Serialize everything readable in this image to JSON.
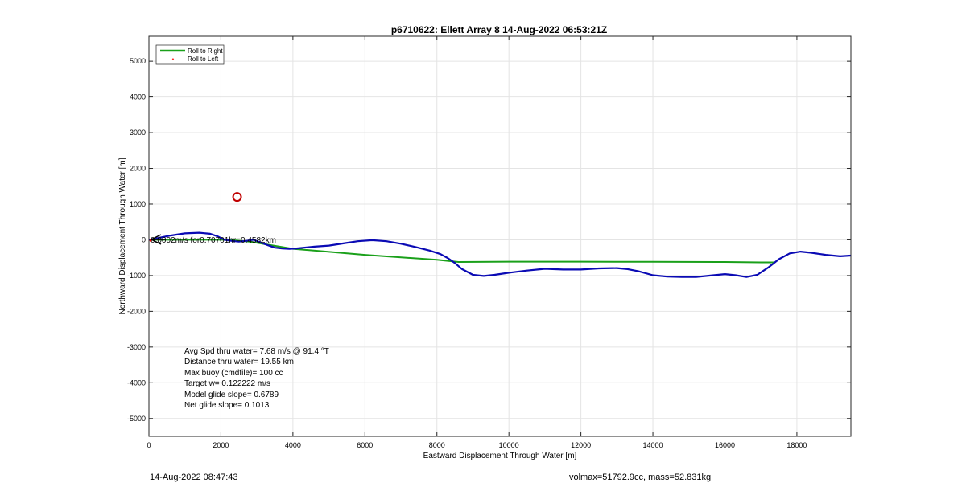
{
  "chart_data": {
    "type": "line",
    "title": "p6710622: Ellett Array 8 14-Aug-2022 06:53:21Z",
    "xlabel": "Eastward Displacement Through Water [m]",
    "ylabel": "Northward Displacement Through Water [m]",
    "xlim": [
      0,
      19500
    ],
    "ylim": [
      -5500,
      5700
    ],
    "xticks": [
      0,
      2000,
      4000,
      6000,
      8000,
      10000,
      12000,
      14000,
      16000,
      18000
    ],
    "yticks": [
      -5000,
      -4000,
      -3000,
      -2000,
      -1000,
      0,
      1000,
      2000,
      3000,
      4000,
      5000
    ],
    "grid": true,
    "legend_position": "top-left",
    "legend": [
      "Roll to Right",
      "Roll to Left"
    ],
    "series": [
      {
        "name": "Roll to Right",
        "color": "#1aa01a",
        "x": [
          0,
          2200,
          2800,
          3400,
          4000,
          6000,
          8000,
          8600,
          10000,
          12000,
          14000,
          16000,
          17000,
          17400
        ],
        "y": [
          0,
          0,
          -50,
          -150,
          -250,
          -420,
          -560,
          -620,
          -610,
          -610,
          -615,
          -620,
          -630,
          -630
        ]
      },
      {
        "name": "",
        "color": "#0a0ab4",
        "x": [
          0,
          300,
          600,
          1000,
          1400,
          1700,
          1900,
          2100,
          2300,
          2500,
          2700,
          2900,
          3100,
          3300,
          3500,
          3700,
          3900,
          4100,
          4300,
          4600,
          5000,
          5400,
          5800,
          6200,
          6600,
          7000,
          7400,
          7800,
          8100,
          8300,
          8500,
          8700,
          9000,
          9300,
          9600,
          10000,
          10500,
          11000,
          11500,
          12000,
          12500,
          13000,
          13300,
          13600,
          14000,
          14400,
          14800,
          15200,
          15600,
          16000,
          16300,
          16600,
          16900,
          17200,
          17500,
          17800,
          18100,
          18400,
          18800,
          19200,
          19500
        ],
        "y": [
          0,
          60,
          120,
          180,
          200,
          170,
          100,
          0,
          -30,
          -50,
          -30,
          0,
          -70,
          -150,
          -220,
          -240,
          -250,
          -240,
          -220,
          -190,
          -160,
          -100,
          -40,
          -10,
          -40,
          -110,
          -200,
          -300,
          -400,
          -510,
          -650,
          -820,
          -980,
          -1010,
          -980,
          -920,
          -860,
          -810,
          -830,
          -830,
          -800,
          -790,
          -820,
          -880,
          -990,
          -1030,
          -1040,
          -1040,
          -1000,
          -960,
          -990,
          -1040,
          -980,
          -780,
          -540,
          -380,
          -330,
          -360,
          -420,
          -460,
          -440
        ]
      }
    ],
    "markers": [
      {
        "label": "Roll to Left",
        "x": 50,
        "y": -20,
        "color": "#ff0000",
        "shape": "dot"
      },
      {
        "label": "target",
        "x": 2450,
        "y": 1200,
        "color": "#c00000",
        "shape": "circle"
      }
    ],
    "current_annotation": "0.0002m/s for0.70701hr=0.4582km",
    "stats": [
      "Avg Spd thru water=  7.68 m/s @  91.4 °T",
      "Distance thru water= 19.55 km",
      "Max buoy (cmdfile)= 100 cc",
      "Target w= 0.122222 m/s",
      "Model glide slope= 0.6789",
      "Net glide slope= 0.1013"
    ]
  },
  "footer": {
    "timestamp": "14-Aug-2022 08:47:43",
    "mass_info": "volmax=51792.9cc, mass=52.831kg"
  }
}
